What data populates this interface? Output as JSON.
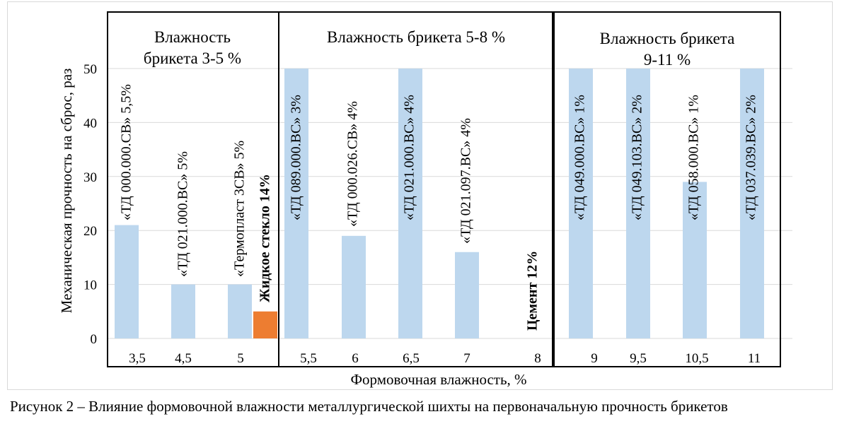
{
  "chart_data": {
    "type": "bar",
    "ylabel": "Механическая прочность на сброс, раз",
    "xlabel": "Формовочная влажность, %",
    "ylim": [
      0,
      50
    ],
    "yticks": [
      0,
      10,
      20,
      30,
      40,
      50
    ],
    "grid": true,
    "colors": {
      "binder": "#bdd7ee",
      "highlight": "#ed7d31"
    },
    "categories": [
      "3,5",
      "4,5",
      "5",
      "5,5",
      "6",
      "6,5",
      "7",
      "8",
      "9",
      "9,5",
      "10,5",
      "11"
    ],
    "bars": [
      {
        "category": "3,5",
        "value": 21,
        "label": "«ТД 000.000.СВ» 5,5%",
        "color": "#bdd7ee"
      },
      {
        "category": "4,5",
        "value": 10,
        "label": "«ТД 021.000.ВС» 5%",
        "color": "#bdd7ee"
      },
      {
        "category": "5",
        "value": 10,
        "label": "«Термопласт 3СВ» 5%",
        "color": "#bdd7ee"
      },
      {
        "category": "5",
        "value": 5,
        "label": "Жидкое стекло 14%",
        "color": "#ed7d31",
        "bold": true
      },
      {
        "category": "5,5",
        "value": 50,
        "label": "«ТД 089.000.ВС» 3%",
        "color": "#bdd7ee"
      },
      {
        "category": "6",
        "value": 19,
        "label": "«ТД 000.026.СВ»  4%",
        "color": "#bdd7ee"
      },
      {
        "category": "6,5",
        "value": 50,
        "label": "«ТД 021.000.ВС» 4%",
        "color": "#bdd7ee"
      },
      {
        "category": "7",
        "value": 16,
        "label": "«ТД 021.097.ВС» 4%",
        "color": "#bdd7ee"
      },
      {
        "category": "8",
        "value": 0,
        "label": "Цемент 12%",
        "color": "#bdd7ee",
        "bold": true
      },
      {
        "category": "9",
        "value": 50,
        "label": "«ТД 049.000.ВС» 1%",
        "color": "#bdd7ee"
      },
      {
        "category": "9,5",
        "value": 50,
        "label": "«ТД 049.103.ВС» 2%",
        "color": "#bdd7ee"
      },
      {
        "category": "10,5",
        "value": 29,
        "label": "«ТД 058.000.ВС» 1%",
        "color": "#bdd7ee"
      },
      {
        "category": "11",
        "value": 50,
        "label": "«ТД 037.039.ВС» 2%",
        "color": "#bdd7ee"
      }
    ],
    "groups": [
      {
        "lines": [
          "Влажность",
          "брикета 3-5 %"
        ]
      },
      {
        "lines": [
          "Влажность брикета 5-8 %"
        ]
      },
      {
        "lines": [
          "Влажность брикета",
          "9-11 %"
        ]
      }
    ]
  },
  "caption": {
    "text": "Рисунок 2 – Влияние формовочной влажности металлургической шихты на первоначальную прочность брикетов"
  }
}
